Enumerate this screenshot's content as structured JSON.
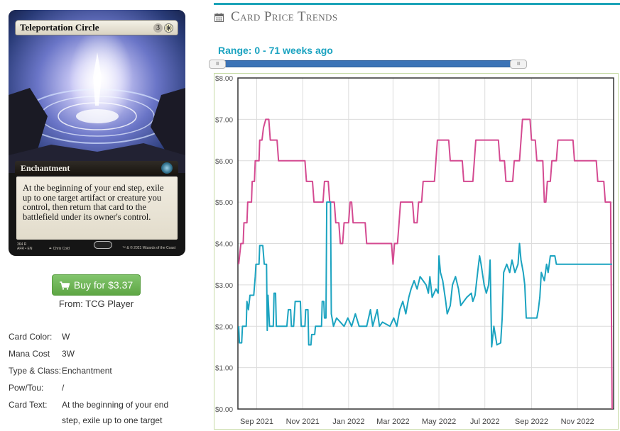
{
  "card": {
    "name": "Teleportation Circle",
    "mana_cost_generic": "3",
    "mana_cost_color": "W",
    "type_line": "Enchantment",
    "rules_text": "At the beginning of your end step, exile up to one target artifact or creature you control, then return that card to the battlefield under its owner's control.",
    "collector_info": "364 R\nAFR • EN",
    "artist": "✒ Chris Cold",
    "copyright": "™ & © 2021 Wizards of the Coast"
  },
  "buy": {
    "label": "Buy for $3.37",
    "from": "From: TCG Player",
    "color": "#6cb554"
  },
  "details": [
    {
      "label": "Card Color:",
      "value": "W"
    },
    {
      "label": "Mana Cost",
      "value": "3W"
    },
    {
      "label": "Type & Class:",
      "value": "Enchantment"
    },
    {
      "label": "Pow/Tou:",
      "value": "/"
    },
    {
      "label": "Card Text:",
      "value": "At the beginning of your end step, exile up to one target"
    }
  ],
  "section": {
    "title": "Card Price Trends",
    "icon": "calendar-icon",
    "accent": "#1ba3b8"
  },
  "range": {
    "label": "Range: 0 - 71 weeks ago",
    "handle_glyph": "III",
    "start_fraction": 0.0,
    "end_fraction": 1.0
  },
  "chart_data": {
    "type": "line",
    "ylim": [
      0,
      8
    ],
    "yticks": [
      "$0.00",
      "$1.00",
      "$2.00",
      "$3.00",
      "$4.00",
      "$5.00",
      "$6.00",
      "$7.00",
      "$8.00"
    ],
    "xlim": [
      "2021-08-07",
      "2022-12-19"
    ],
    "xticks": [
      {
        "date": "2021-09-01",
        "label": "Sep 2021"
      },
      {
        "date": "2021-11-01",
        "label": "Nov 2021"
      },
      {
        "date": "2022-01-01",
        "label": "Jan 2022"
      },
      {
        "date": "2022-03-01",
        "label": "Mar 2022"
      },
      {
        "date": "2022-05-01",
        "label": "May 2022"
      },
      {
        "date": "2022-07-01",
        "label": "Jul 2022"
      },
      {
        "date": "2022-09-01",
        "label": "Sep 2022"
      },
      {
        "date": "2022-11-01",
        "label": "Nov 2022"
      }
    ],
    "grid": true,
    "series": [
      {
        "color": "#d44a91",
        "points": [
          [
            "2021-08-08",
            3.5
          ],
          [
            "2021-08-11",
            4.0
          ],
          [
            "2021-08-14",
            4.0
          ],
          [
            "2021-08-15",
            4.5
          ],
          [
            "2021-08-19",
            4.5
          ],
          [
            "2021-08-20",
            5.0
          ],
          [
            "2021-08-25",
            5.0
          ],
          [
            "2021-08-26",
            5.5
          ],
          [
            "2021-08-29",
            5.5
          ],
          [
            "2021-08-30",
            6.0
          ],
          [
            "2021-09-04",
            6.0
          ],
          [
            "2021-09-05",
            6.5
          ],
          [
            "2021-09-08",
            6.5
          ],
          [
            "2021-09-10",
            6.8
          ],
          [
            "2021-09-13",
            7.0
          ],
          [
            "2021-09-17",
            7.0
          ],
          [
            "2021-09-19",
            6.5
          ],
          [
            "2021-09-28",
            6.5
          ],
          [
            "2021-09-30",
            6.0
          ],
          [
            "2021-11-04",
            6.0
          ],
          [
            "2021-11-06",
            5.5
          ],
          [
            "2021-11-14",
            5.5
          ],
          [
            "2021-11-16",
            5.0
          ],
          [
            "2021-11-28",
            5.0
          ],
          [
            "2021-11-30",
            5.5
          ],
          [
            "2021-12-05",
            5.5
          ],
          [
            "2021-12-07",
            5.0
          ],
          [
            "2021-12-13",
            5.0
          ],
          [
            "2021-12-15",
            4.5
          ],
          [
            "2021-12-19",
            4.5
          ],
          [
            "2021-12-21",
            4.0
          ],
          [
            "2021-12-24",
            4.0
          ],
          [
            "2021-12-26",
            4.5
          ],
          [
            "2022-01-01",
            4.5
          ],
          [
            "2022-01-03",
            5.0
          ],
          [
            "2022-01-05",
            5.0
          ],
          [
            "2022-01-07",
            4.5
          ],
          [
            "2022-01-23",
            4.5
          ],
          [
            "2022-01-25",
            4.0
          ],
          [
            "2022-02-27",
            4.0
          ],
          [
            "2022-03-01",
            3.5
          ],
          [
            "2022-03-03",
            4.0
          ],
          [
            "2022-03-07",
            4.0
          ],
          [
            "2022-03-09",
            4.5
          ],
          [
            "2022-03-11",
            5.0
          ],
          [
            "2022-03-27",
            5.0
          ],
          [
            "2022-03-29",
            4.5
          ],
          [
            "2022-04-02",
            4.5
          ],
          [
            "2022-04-04",
            5.0
          ],
          [
            "2022-04-08",
            5.0
          ],
          [
            "2022-04-10",
            5.5
          ],
          [
            "2022-04-25",
            5.5
          ],
          [
            "2022-04-27",
            6.0
          ],
          [
            "2022-04-29",
            6.5
          ],
          [
            "2022-05-14",
            6.5
          ],
          [
            "2022-05-16",
            6.0
          ],
          [
            "2022-06-01",
            6.0
          ],
          [
            "2022-06-03",
            5.5
          ],
          [
            "2022-06-15",
            5.5
          ],
          [
            "2022-06-17",
            6.0
          ],
          [
            "2022-06-19",
            6.5
          ],
          [
            "2022-07-19",
            6.5
          ],
          [
            "2022-07-21",
            6.0
          ],
          [
            "2022-07-27",
            6.0
          ],
          [
            "2022-07-29",
            5.5
          ],
          [
            "2022-08-07",
            5.5
          ],
          [
            "2022-08-09",
            6.0
          ],
          [
            "2022-08-16",
            6.0
          ],
          [
            "2022-08-18",
            6.5
          ],
          [
            "2022-08-20",
            7.0
          ],
          [
            "2022-08-30",
            7.0
          ],
          [
            "2022-09-01",
            6.5
          ],
          [
            "2022-09-06",
            6.5
          ],
          [
            "2022-09-08",
            6.0
          ],
          [
            "2022-09-16",
            6.0
          ],
          [
            "2022-09-18",
            5.0
          ],
          [
            "2022-09-20",
            5.0
          ],
          [
            "2022-09-22",
            5.5
          ],
          [
            "2022-09-26",
            5.5
          ],
          [
            "2022-09-28",
            6.0
          ],
          [
            "2022-10-04",
            6.0
          ],
          [
            "2022-10-06",
            6.5
          ],
          [
            "2022-10-26",
            6.5
          ],
          [
            "2022-10-28",
            6.0
          ],
          [
            "2022-11-26",
            6.0
          ],
          [
            "2022-11-28",
            5.5
          ],
          [
            "2022-12-06",
            5.5
          ],
          [
            "2022-12-08",
            5.0
          ],
          [
            "2022-12-15",
            5.0
          ],
          [
            "2022-12-17",
            0.0
          ]
        ]
      },
      {
        "color": "#1ba3c0",
        "points": [
          [
            "2021-08-08",
            2.0
          ],
          [
            "2021-08-09",
            1.6
          ],
          [
            "2021-08-12",
            1.6
          ],
          [
            "2021-08-13",
            2.0
          ],
          [
            "2021-08-18",
            2.0
          ],
          [
            "2021-08-19",
            2.6
          ],
          [
            "2021-08-21",
            2.4
          ],
          [
            "2021-08-23",
            2.75
          ],
          [
            "2021-08-28",
            2.75
          ],
          [
            "2021-08-30",
            3.2
          ],
          [
            "2021-08-31",
            3.5
          ],
          [
            "2021-09-04",
            3.5
          ],
          [
            "2021-09-05",
            3.95
          ],
          [
            "2021-09-09",
            3.95
          ],
          [
            "2021-09-11",
            3.5
          ],
          [
            "2021-09-14",
            3.5
          ],
          [
            "2021-09-15",
            1.9
          ],
          [
            "2021-09-16",
            2.75
          ],
          [
            "2021-09-18",
            2.0
          ],
          [
            "2021-09-23",
            2.0
          ],
          [
            "2021-09-24",
            2.8
          ],
          [
            "2021-09-26",
            2.8
          ],
          [
            "2021-09-27",
            2.0
          ],
          [
            "2021-10-11",
            2.0
          ],
          [
            "2021-10-13",
            2.4
          ],
          [
            "2021-10-16",
            2.4
          ],
          [
            "2021-10-17",
            2.0
          ],
          [
            "2021-10-20",
            2.0
          ],
          [
            "2021-10-22",
            2.6
          ],
          [
            "2021-10-29",
            2.6
          ],
          [
            "2021-10-30",
            2.0
          ],
          [
            "2021-11-04",
            2.0
          ],
          [
            "2021-11-05",
            2.4
          ],
          [
            "2021-11-08",
            2.4
          ],
          [
            "2021-11-09",
            1.55
          ],
          [
            "2021-11-12",
            1.55
          ],
          [
            "2021-11-13",
            1.8
          ],
          [
            "2021-11-17",
            1.8
          ],
          [
            "2021-11-18",
            2.0
          ],
          [
            "2021-11-26",
            2.0
          ],
          [
            "2021-11-27",
            2.6
          ],
          [
            "2021-11-29",
            2.6
          ],
          [
            "2021-11-30",
            2.2
          ],
          [
            "2021-12-02",
            2.2
          ],
          [
            "2021-12-03",
            5.0
          ],
          [
            "2021-12-08",
            5.0
          ],
          [
            "2021-12-09",
            2.3
          ],
          [
            "2021-12-12",
            2.0
          ],
          [
            "2021-12-16",
            2.2
          ],
          [
            "2021-12-21",
            2.1
          ],
          [
            "2021-12-26",
            2.0
          ],
          [
            "2021-12-31",
            2.2
          ],
          [
            "2022-01-05",
            2.0
          ],
          [
            "2022-01-10",
            2.3
          ],
          [
            "2022-01-15",
            2.0
          ],
          [
            "2022-01-25",
            2.0
          ],
          [
            "2022-01-30",
            2.4
          ],
          [
            "2022-02-02",
            2.0
          ],
          [
            "2022-02-08",
            2.4
          ],
          [
            "2022-02-11",
            2.0
          ],
          [
            "2022-02-15",
            2.1
          ],
          [
            "2022-02-25",
            2.0
          ],
          [
            "2022-03-02",
            2.2
          ],
          [
            "2022-03-06",
            2.0
          ],
          [
            "2022-03-10",
            2.4
          ],
          [
            "2022-03-14",
            2.6
          ],
          [
            "2022-03-18",
            2.3
          ],
          [
            "2022-03-22",
            2.7
          ],
          [
            "2022-03-25",
            2.9
          ],
          [
            "2022-03-29",
            3.1
          ],
          [
            "2022-04-02",
            2.9
          ],
          [
            "2022-04-06",
            3.2
          ],
          [
            "2022-04-10",
            3.1
          ],
          [
            "2022-04-14",
            3.0
          ],
          [
            "2022-04-17",
            2.8
          ],
          [
            "2022-04-19",
            3.2
          ],
          [
            "2022-04-22",
            2.7
          ],
          [
            "2022-04-27",
            2.9
          ],
          [
            "2022-04-30",
            2.8
          ],
          [
            "2022-05-01",
            3.7
          ],
          [
            "2022-05-03",
            3.3
          ],
          [
            "2022-05-06",
            3.1
          ],
          [
            "2022-05-10",
            2.6
          ],
          [
            "2022-05-12",
            2.3
          ],
          [
            "2022-05-16",
            2.5
          ],
          [
            "2022-05-19",
            3.0
          ],
          [
            "2022-05-23",
            3.2
          ],
          [
            "2022-05-27",
            2.9
          ],
          [
            "2022-05-30",
            2.5
          ],
          [
            "2022-06-03",
            2.6
          ],
          [
            "2022-06-07",
            2.7
          ],
          [
            "2022-06-13",
            2.8
          ],
          [
            "2022-06-15",
            2.6
          ],
          [
            "2022-06-18",
            2.75
          ],
          [
            "2022-06-22",
            3.4
          ],
          [
            "2022-06-24",
            3.7
          ],
          [
            "2022-06-26",
            3.5
          ],
          [
            "2022-06-30",
            3.0
          ],
          [
            "2022-07-03",
            2.8
          ],
          [
            "2022-07-06",
            3.0
          ],
          [
            "2022-07-08",
            3.6
          ],
          [
            "2022-07-10",
            1.5
          ],
          [
            "2022-07-13",
            2.0
          ],
          [
            "2022-07-17",
            1.55
          ],
          [
            "2022-07-22",
            1.6
          ],
          [
            "2022-07-24",
            2.2
          ],
          [
            "2022-07-26",
            3.3
          ],
          [
            "2022-07-30",
            3.5
          ],
          [
            "2022-08-03",
            3.3
          ],
          [
            "2022-08-06",
            3.6
          ],
          [
            "2022-08-10",
            3.3
          ],
          [
            "2022-08-14",
            3.5
          ],
          [
            "2022-08-16",
            4.0
          ],
          [
            "2022-08-18",
            3.6
          ],
          [
            "2022-08-21",
            3.3
          ],
          [
            "2022-08-23",
            3.0
          ],
          [
            "2022-08-25",
            2.2
          ],
          [
            "2022-09-08",
            2.2
          ],
          [
            "2022-09-10",
            2.4
          ],
          [
            "2022-09-12",
            2.7
          ],
          [
            "2022-09-14",
            3.3
          ],
          [
            "2022-09-18",
            3.1
          ],
          [
            "2022-09-21",
            3.5
          ],
          [
            "2022-09-23",
            3.3
          ],
          [
            "2022-09-26",
            3.7
          ],
          [
            "2022-10-02",
            3.7
          ],
          [
            "2022-10-04",
            3.5
          ],
          [
            "2022-12-17",
            3.5
          ]
        ]
      }
    ]
  }
}
